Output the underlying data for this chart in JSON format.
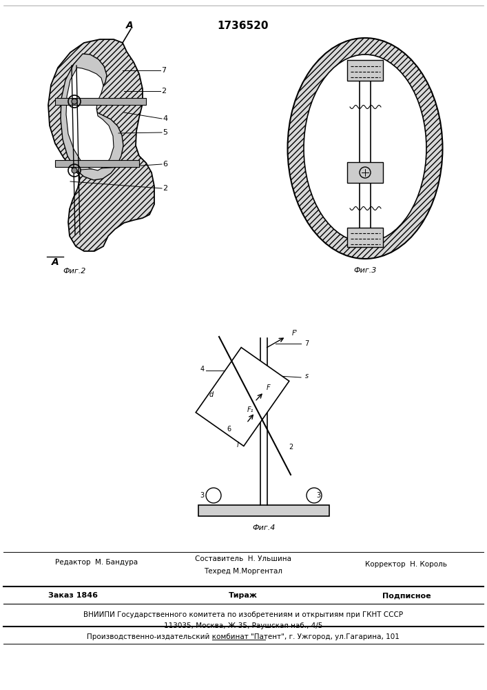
{
  "title": "1736520",
  "background_color": "#ffffff",
  "fig2_label": "Фиг.2",
  "fig3_label": "Фиг.3",
  "fig4_label": "Фиг.4",
  "footer_line1_left": "Редактор  М. Бандура",
  "footer_line1_center_top": "Составитель  Н. Ульшина",
  "footer_line1_center_bot": "Техред М.Моргентал",
  "footer_line1_right": "Корректор  Н. Король",
  "footer_line2_col1": "Заказ 1846",
  "footer_line2_col2": "Тираж",
  "footer_line2_col3": "Подписное",
  "footer_line3": "ВНИИПИ Государственного комитета по изобретениям и открытиям при ГКНТ СССР",
  "footer_line4": "113035, Москва, Ж-35, Раушская наб., 4/5",
  "footer_line5": "Производственно-издательский комбинат \"Патент\", г. Ужгород, ул.Гагарина, 101"
}
